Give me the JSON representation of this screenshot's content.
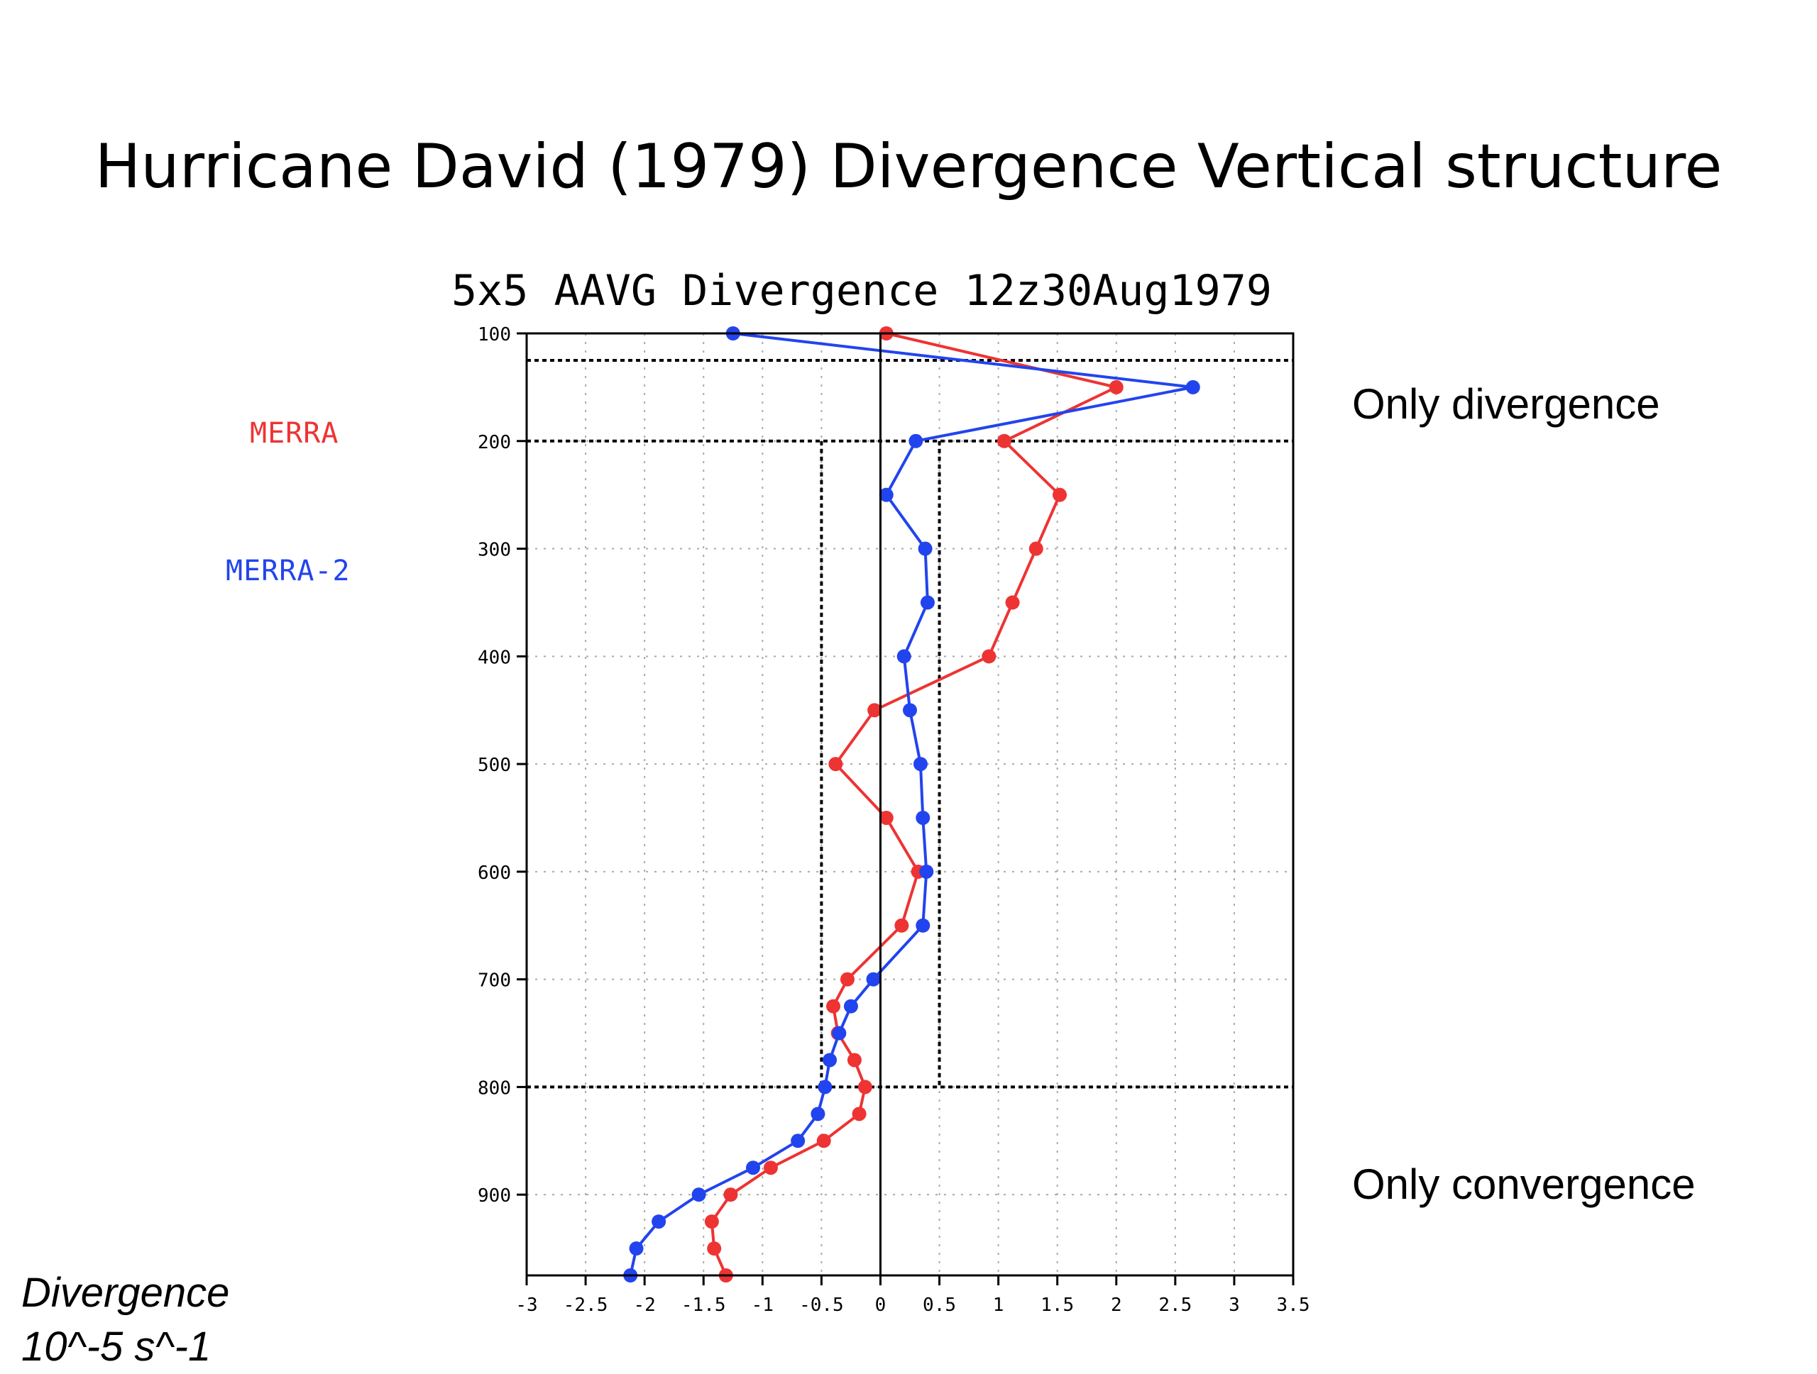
{
  "slide_title": "Hurricane David (1979) Divergence Vertical structure",
  "annotations": {
    "top": "Only divergence",
    "bottom": "Only convergence"
  },
  "units": {
    "line1": "Divergence",
    "line2": "10^-5 s^-1"
  },
  "colors": {
    "merra": "#ee3333",
    "merra2": "#2244ee"
  },
  "chart_data": {
    "type": "line",
    "title": "5x5 AAVG Divergence 12z30Aug1979",
    "xlabel": "",
    "ylabel": "",
    "xlim": [
      -3,
      3.5
    ],
    "ylim": [
      100,
      975
    ],
    "y_inverted": true,
    "x_ticks": [
      "-3",
      "-2.5",
      "-2",
      "-1.5",
      "-1",
      "-0.5",
      "0",
      "0.5",
      "1",
      "1.5",
      "2",
      "2.5",
      "3",
      "3.5"
    ],
    "y_ticks": [
      "100",
      "200",
      "300",
      "400",
      "500",
      "600",
      "700",
      "800",
      "900"
    ],
    "grid": true,
    "legend_position": "left",
    "reference_lines": {
      "horizontal": [
        125,
        200,
        800
      ],
      "vertical": [
        -0.5,
        0.5
      ],
      "vertical_range": [
        200,
        800
      ]
    },
    "series": [
      {
        "name": "MERRA",
        "color": "#ee3333",
        "points": [
          {
            "x": 0.05,
            "y": 100
          },
          {
            "x": 2.0,
            "y": 150
          },
          {
            "x": 1.05,
            "y": 200
          },
          {
            "x": 1.52,
            "y": 250
          },
          {
            "x": 1.32,
            "y": 300
          },
          {
            "x": 1.12,
            "y": 350
          },
          {
            "x": 0.92,
            "y": 400
          },
          {
            "x": -0.05,
            "y": 450
          },
          {
            "x": -0.38,
            "y": 500
          },
          {
            "x": 0.05,
            "y": 550
          },
          {
            "x": 0.32,
            "y": 600
          },
          {
            "x": 0.18,
            "y": 650
          },
          {
            "x": -0.28,
            "y": 700
          },
          {
            "x": -0.4,
            "y": 725
          },
          {
            "x": -0.36,
            "y": 750
          },
          {
            "x": -0.22,
            "y": 775
          },
          {
            "x": -0.13,
            "y": 800
          },
          {
            "x": -0.18,
            "y": 825
          },
          {
            "x": -0.48,
            "y": 850
          },
          {
            "x": -0.93,
            "y": 875
          },
          {
            "x": -1.27,
            "y": 900
          },
          {
            "x": -1.43,
            "y": 925
          },
          {
            "x": -1.41,
            "y": 950
          },
          {
            "x": -1.31,
            "y": 975
          }
        ]
      },
      {
        "name": "MERRA-2",
        "color": "#2244ee",
        "points": [
          {
            "x": -1.25,
            "y": 100
          },
          {
            "x": 2.65,
            "y": 150
          },
          {
            "x": 0.3,
            "y": 200
          },
          {
            "x": 0.05,
            "y": 250
          },
          {
            "x": 0.38,
            "y": 300
          },
          {
            "x": 0.4,
            "y": 350
          },
          {
            "x": 0.2,
            "y": 400
          },
          {
            "x": 0.25,
            "y": 450
          },
          {
            "x": 0.34,
            "y": 500
          },
          {
            "x": 0.36,
            "y": 550
          },
          {
            "x": 0.39,
            "y": 600
          },
          {
            "x": 0.36,
            "y": 650
          },
          {
            "x": -0.06,
            "y": 700
          },
          {
            "x": -0.25,
            "y": 725
          },
          {
            "x": -0.35,
            "y": 750
          },
          {
            "x": -0.43,
            "y": 775
          },
          {
            "x": -0.47,
            "y": 800
          },
          {
            "x": -0.53,
            "y": 825
          },
          {
            "x": -0.7,
            "y": 850
          },
          {
            "x": -1.08,
            "y": 875
          },
          {
            "x": -1.54,
            "y": 900
          },
          {
            "x": -1.88,
            "y": 925
          },
          {
            "x": -2.07,
            "y": 950
          },
          {
            "x": -2.12,
            "y": 975
          }
        ]
      }
    ]
  }
}
